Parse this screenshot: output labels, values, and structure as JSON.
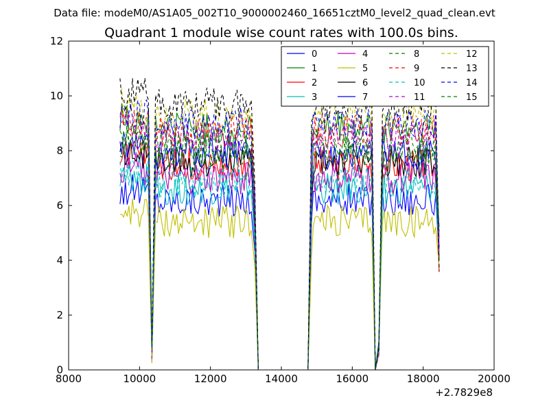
{
  "chart_data": {
    "type": "line",
    "suptitle": "Data file: modeM0/AS1A05_002T10_9000002460_16651cztM0_level2_quad_clean.evt",
    "title": "Quadrant 1 module wise count rates with 100.0s bins.",
    "xlabel": "",
    "ylabel": "",
    "xlim": [
      8000,
      20000
    ],
    "ylim": [
      0,
      12
    ],
    "x_ticks": [
      8000,
      10000,
      12000,
      14000,
      16000,
      18000,
      20000
    ],
    "y_ticks": [
      0,
      2,
      4,
      6,
      8,
      10,
      12
    ],
    "x_offset_label": "+2.7829e8",
    "grid": false,
    "legend": {
      "location": "top-right",
      "columns": 4,
      "entries": [
        "0",
        "1",
        "2",
        "3",
        "4",
        "5",
        "6",
        "7",
        "8",
        "9",
        "10",
        "11",
        "12",
        "13",
        "14",
        "15"
      ]
    },
    "segments": [
      {
        "x_start": 9450,
        "x_end": 10250,
        "drop_at": 10350,
        "recover_at": 10450
      },
      {
        "x_start": 10450,
        "x_end": 13150,
        "drop_at": 13350
      },
      {
        "x_start": 13350,
        "x_end": 14750,
        "zero_gap": true
      },
      {
        "x_start": 14850,
        "x_end": 16550,
        "drop_at": 16650,
        "recover_at": 16850
      },
      {
        "x_start": 16850,
        "x_end": 18250,
        "end_at": 18450
      }
    ],
    "series": [
      {
        "name": "0",
        "color": "#0000ff",
        "dash": "solid",
        "level": 6.2
      },
      {
        "name": "1",
        "color": "#008000",
        "dash": "solid",
        "level": 8.8
      },
      {
        "name": "2",
        "color": "#ff0000",
        "dash": "solid",
        "level": 7.5
      },
      {
        "name": "3",
        "color": "#00bfbf",
        "dash": "solid",
        "level": 6.6
      },
      {
        "name": "4",
        "color": "#bf00bf",
        "dash": "solid",
        "level": 7.0
      },
      {
        "name": "5",
        "color": "#bfbf00",
        "dash": "solid",
        "level": 5.4
      },
      {
        "name": "6",
        "color": "#000000",
        "dash": "solid",
        "level": 7.6
      },
      {
        "name": "7",
        "color": "#0000ff",
        "dash": "solid",
        "level": 7.9
      },
      {
        "name": "8",
        "color": "#008000",
        "dash": "dashed",
        "level": 8.2
      },
      {
        "name": "9",
        "color": "#ff0000",
        "dash": "dashed",
        "level": 8.7
      },
      {
        "name": "10",
        "color": "#00bfbf",
        "dash": "dashed",
        "level": 6.9
      },
      {
        "name": "11",
        "color": "#bf00bf",
        "dash": "dashed",
        "level": 8.5
      },
      {
        "name": "12",
        "color": "#bfbf00",
        "dash": "dashed",
        "level": 9.3
      },
      {
        "name": "13",
        "color": "#000000",
        "dash": "dashed",
        "level": 9.7
      },
      {
        "name": "14",
        "color": "#0000ff",
        "dash": "dashed",
        "level": 9.0
      },
      {
        "name": "15",
        "color": "#008000",
        "dash": "dashed",
        "level": 7.9
      }
    ]
  }
}
